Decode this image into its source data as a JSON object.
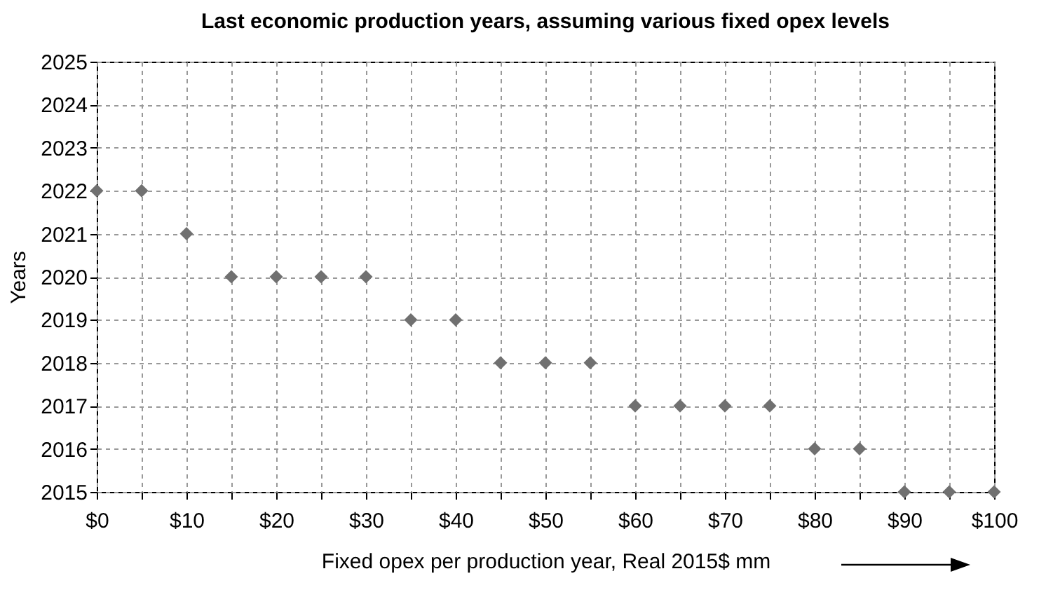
{
  "chart_data": {
    "type": "scatter",
    "title": "Last economic production years, assuming various fixed opex levels",
    "xlabel": "Fixed opex per production year, Real 2015$ mm",
    "ylabel": "Years",
    "x": [
      0,
      5,
      10,
      15,
      20,
      25,
      30,
      35,
      40,
      45,
      50,
      55,
      60,
      65,
      70,
      75,
      80,
      85,
      90,
      95,
      100
    ],
    "series": [
      {
        "color": "#707070",
        "values": [
          2022,
          2022,
          2021,
          2020,
          2020,
          2020,
          2020,
          2019,
          2019,
          2018,
          2018,
          2018,
          2017,
          2017,
          2017,
          2017,
          2016,
          2016,
          2015,
          2015,
          2015
        ]
      }
    ],
    "xlim": [
      0,
      100
    ],
    "xticks": [
      {
        "value": 0,
        "label": "$0"
      },
      {
        "value": 5,
        "label": null
      },
      {
        "value": 10,
        "label": "$10"
      },
      {
        "value": 15,
        "label": null
      },
      {
        "value": 20,
        "label": "$20"
      },
      {
        "value": 25,
        "label": null
      },
      {
        "value": 30,
        "label": "$30"
      },
      {
        "value": 35,
        "label": null
      },
      {
        "value": 40,
        "label": "$40"
      },
      {
        "value": 45,
        "label": null
      },
      {
        "value": 50,
        "label": "$50"
      },
      {
        "value": 55,
        "label": null
      },
      {
        "value": 60,
        "label": "$60"
      },
      {
        "value": 65,
        "label": null
      },
      {
        "value": 70,
        "label": "$70"
      },
      {
        "value": 75,
        "label": null
      },
      {
        "value": 80,
        "label": "$80"
      },
      {
        "value": 85,
        "label": null
      },
      {
        "value": 90,
        "label": "$90"
      },
      {
        "value": 95,
        "label": null
      },
      {
        "value": 100,
        "label": "$100"
      }
    ],
    "ylim": [
      2015,
      2025
    ],
    "yticks": [
      2015,
      2016,
      2017,
      2018,
      2019,
      2020,
      2021,
      2022,
      2023,
      2024,
      2025
    ],
    "grid": true,
    "marker": "diamond"
  }
}
